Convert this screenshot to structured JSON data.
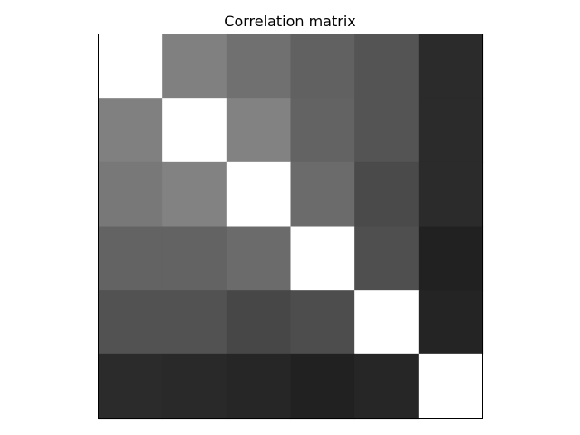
{
  "chart_data": {
    "type": "heatmap",
    "title": "Correlation matrix",
    "xlabel": "",
    "ylabel": "",
    "colormap": "gray",
    "vmin": 0,
    "vmax": 1,
    "grid": false,
    "axes_ticks": false,
    "matrix": [
      [
        1.0,
        0.5,
        0.44,
        0.38,
        0.33,
        0.17
      ],
      [
        0.5,
        1.0,
        0.51,
        0.39,
        0.33,
        0.17
      ],
      [
        0.47,
        0.51,
        1.0,
        0.42,
        0.29,
        0.17
      ],
      [
        0.39,
        0.39,
        0.42,
        1.0,
        0.31,
        0.13
      ],
      [
        0.32,
        0.32,
        0.28,
        0.3,
        1.0,
        0.14
      ],
      [
        0.17,
        0.16,
        0.15,
        0.13,
        0.15,
        1.0
      ]
    ]
  }
}
